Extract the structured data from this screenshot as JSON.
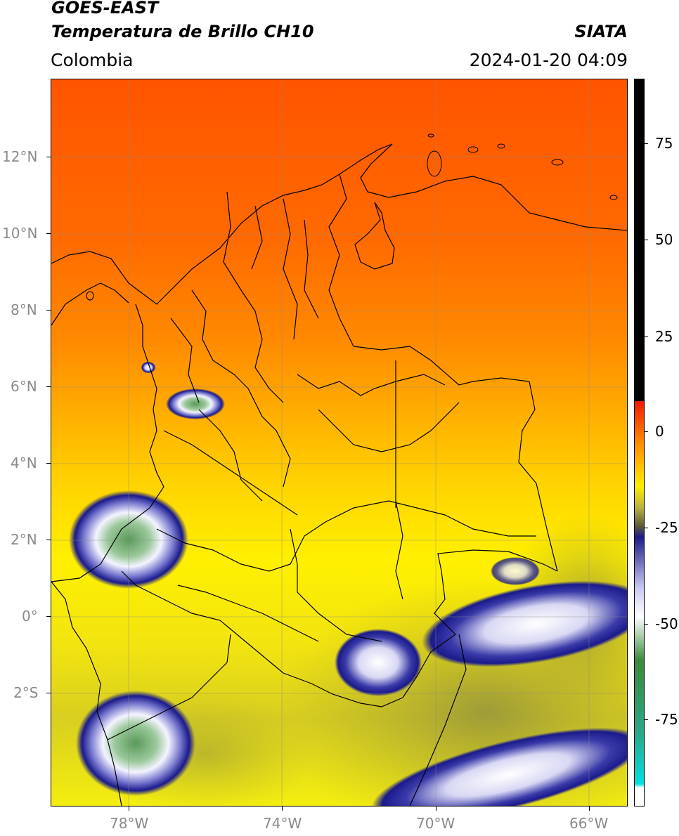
{
  "header": {
    "title_line1": "GOES-EAST",
    "title_line2": "Temperatura de Brillo CH10",
    "region": "Colombia",
    "agency": "SIATA",
    "datetime": "2024-01-20 04:09"
  },
  "axes": {
    "lat_labels": [
      "12°N",
      "10°N",
      "8°N",
      "6°N",
      "4°N",
      "2°N",
      "0°",
      "2°S"
    ],
    "lon_labels": [
      "78°W",
      "74°W",
      "70°W",
      "66°W"
    ]
  },
  "colorbar": {
    "labels": [
      "75",
      "50",
      "25",
      "0",
      "-25",
      "-50",
      "-75"
    ],
    "colors": {
      "black": "#000000",
      "red": "#ee1a00",
      "orange": "#ff8a00",
      "yellow": "#ffee00",
      "olive": "#b8b040",
      "dark_olive": "#5a5a3a",
      "navy": "#1c1c8a",
      "lavender": "#c8c8f0",
      "white": "#ffffff",
      "green": "#3a8a3a",
      "teal": "#2aa88a",
      "cyan": "#00e0e0"
    }
  },
  "map_colors": {
    "warm_top": "#ff5a00",
    "mid": "#ff9a00",
    "yellow": "#ffe800",
    "olive_south": "#c8c028",
    "cloud_navy": "#1a1a8c",
    "cloud_white": "#eeeeff",
    "cloud_green": "#5a9a5a"
  }
}
